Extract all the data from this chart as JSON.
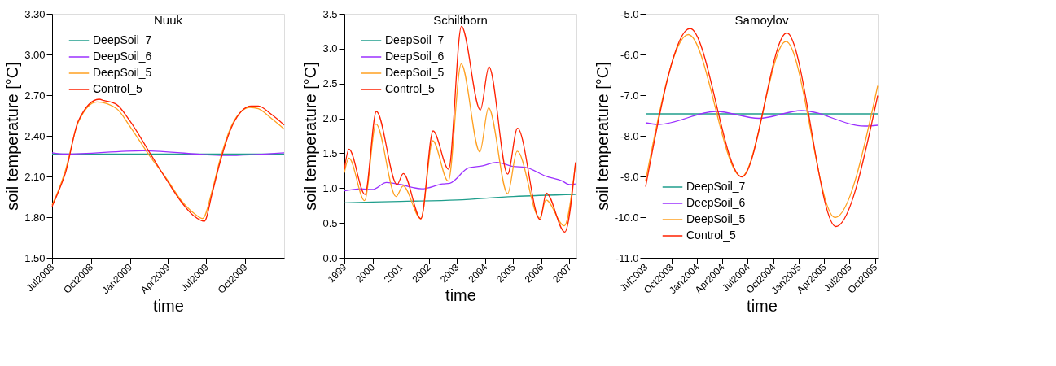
{
  "chart_data": [
    {
      "type": "line",
      "title": "Nuuk",
      "xlabel": "time",
      "ylabel": "soil temperature [°C]",
      "legend": "top left",
      "grid": false,
      "xlim": [
        "2008-07-01",
        "2010-01-01"
      ],
      "xticks": [
        {
          "value": "2008-07-01",
          "label": "Jul2008"
        },
        {
          "value": "2008-10-01",
          "label": "Oct2008"
        },
        {
          "value": "2009-01-01",
          "label": "Jan2009"
        },
        {
          "value": "2009-04-01",
          "label": "Apr2009"
        },
        {
          "value": "2009-07-01",
          "label": "Jul2009"
        },
        {
          "value": "2009-10-01",
          "label": "Oct2009"
        }
      ],
      "ylim": [
        1.5,
        3.3
      ],
      "yticks": [
        {
          "value": 1.5,
          "label": "1.50"
        },
        {
          "value": 1.8,
          "label": "1.80"
        },
        {
          "value": 2.1,
          "label": "2.10"
        },
        {
          "value": 2.4,
          "label": "2.40"
        },
        {
          "value": 2.7,
          "label": "2.70"
        },
        {
          "value": 3.0,
          "label": "3.00"
        },
        {
          "value": 3.3,
          "label": "3.30"
        }
      ],
      "series": [
        {
          "name": "DeepSoil_7",
          "color": "#1f9e8c",
          "x": [
            "2008-07-01",
            "2009-01-01",
            "2009-07-01",
            "2010-01-01"
          ],
          "values": [
            2.265,
            2.265,
            2.265,
            2.265
          ]
        },
        {
          "name": "DeepSoil_6",
          "color": "#9b30ff",
          "x": [
            "2008-07-01",
            "2008-08-01",
            "2009-02-01",
            "2009-08-15",
            "2010-01-01"
          ],
          "values": [
            2.275,
            2.265,
            2.29,
            2.255,
            2.275
          ]
        },
        {
          "name": "DeepSoil_5",
          "color": "#ffa020",
          "x": [
            "2008-07-01",
            "2008-07-15",
            "2008-08-01",
            "2008-09-01",
            "2008-10-15",
            "2008-12-01",
            "2009-01-01",
            "2009-02-15",
            "2009-04-01",
            "2009-05-01",
            "2009-06-01",
            "2009-06-22",
            "2009-07-15",
            "2009-08-01",
            "2009-09-01",
            "2009-10-12",
            "2009-11-01",
            "2009-12-01",
            "2010-01-01"
          ],
          "values": [
            1.89,
            1.99,
            2.14,
            2.5,
            2.65,
            2.6,
            2.47,
            2.26,
            2.07,
            1.93,
            1.83,
            1.79,
            2.0,
            2.21,
            2.49,
            2.61,
            2.6,
            2.53,
            2.45
          ]
        },
        {
          "name": "Control_5",
          "color": "#ff2000",
          "x": [
            "2008-07-01",
            "2008-07-15",
            "2008-08-01",
            "2008-09-01",
            "2008-10-20",
            "2008-11-01",
            "2008-12-01",
            "2009-01-01",
            "2009-02-18",
            "2009-04-01",
            "2009-05-01",
            "2009-06-01",
            "2009-06-26",
            "2009-07-15",
            "2009-08-01",
            "2009-09-01",
            "2009-10-15",
            "2009-11-01",
            "2009-12-01",
            "2010-01-01"
          ],
          "values": [
            1.88,
            1.98,
            2.12,
            2.51,
            2.67,
            2.66,
            2.63,
            2.51,
            2.27,
            2.06,
            1.92,
            1.81,
            1.77,
            1.98,
            2.19,
            2.48,
            2.62,
            2.62,
            2.56,
            2.48
          ]
        }
      ]
    },
    {
      "type": "line",
      "title": "Schilthorn",
      "xlabel": "time",
      "ylabel": "soil temperature [°C]",
      "legend": "top left",
      "grid": false,
      "xlim": [
        "1999-01-01",
        "2007-04-01"
      ],
      "xticks": [
        {
          "value": "1999-01-01",
          "label": "1999"
        },
        {
          "value": "2000-01-01",
          "label": "2000"
        },
        {
          "value": "2001-01-01",
          "label": "2001"
        },
        {
          "value": "2002-01-01",
          "label": "2002"
        },
        {
          "value": "2003-01-01",
          "label": "2003"
        },
        {
          "value": "2004-01-01",
          "label": "2004"
        },
        {
          "value": "2005-01-01",
          "label": "2005"
        },
        {
          "value": "2006-01-01",
          "label": "2006"
        },
        {
          "value": "2007-01-01",
          "label": "2007"
        }
      ],
      "ylim": [
        0,
        3.5
      ],
      "yticks": [
        {
          "value": 0,
          "label": "0.0"
        },
        0.5,
        {
          "value": 1,
          "label": "1.0"
        },
        1.5,
        {
          "value": 2,
          "label": "2.0"
        },
        2.5,
        {
          "value": 3,
          "label": "3.0"
        },
        3.5
      ],
      "series": [
        {
          "name": "DeepSoil_7",
          "color": "#1f9e8c",
          "x": [
            "1999-01-01",
            "2001-01-01",
            "2003-01-01",
            "2005-01-01",
            "2007-03-20"
          ],
          "values": [
            0.79,
            0.81,
            0.83,
            0.88,
            0.91
          ]
        },
        {
          "name": "DeepSoil_6",
          "color": "#9b30ff",
          "x": [
            "1999-01-01",
            "1999-08-01",
            "2000-01-01",
            "2000-07-01",
            "2001-01-01",
            "2001-10-01",
            "2002-07-01",
            "2002-10-01",
            "2003-06-01",
            "2003-12-01",
            "2004-06-01",
            "2005-01-01",
            "2005-06-01",
            "2006-03-01",
            "2006-10-01",
            "2007-01-01",
            "2007-03-20"
          ],
          "values": [
            0.96,
            0.99,
            0.98,
            1.08,
            1.05,
            0.99,
            1.06,
            1.07,
            1.29,
            1.32,
            1.37,
            1.31,
            1.3,
            1.17,
            1.1,
            1.05,
            1.06
          ]
        },
        {
          "name": "DeepSoil_5",
          "color": "#ffa020",
          "x": [
            "1999-01-01",
            "1999-03-01",
            "1999-09-20",
            "2000-02-15",
            "2000-11-01",
            "2001-02-01",
            "2001-09-20",
            "2002-02-20",
            "2002-09-10",
            "2003-02-25",
            "2003-10-25",
            "2004-02-15",
            "2004-10-20",
            "2005-02-20",
            "2005-12-10",
            "2006-03-01",
            "2006-10-25",
            "2007-03-20"
          ],
          "values": [
            1.22,
            1.43,
            0.82,
            1.92,
            0.88,
            1.03,
            0.56,
            1.68,
            1.1,
            2.78,
            1.52,
            2.15,
            0.92,
            1.53,
            0.57,
            0.83,
            0.46,
            1.35
          ]
        },
        {
          "name": "Control_5",
          "color": "#ff2000",
          "x": [
            "1999-01-01",
            "1999-03-01",
            "1999-09-25",
            "2000-02-20",
            "2000-11-15",
            "2001-02-03",
            "2001-09-20",
            "2002-02-25",
            "2002-09-15",
            "2003-02-28",
            "2003-11-01",
            "2004-02-20",
            "2004-10-20",
            "2005-02-25",
            "2005-12-15",
            "2006-03-05",
            "2006-11-01",
            "2007-03-20"
          ],
          "values": [
            1.27,
            1.56,
            0.91,
            2.1,
            1.05,
            1.21,
            0.56,
            1.82,
            1.27,
            3.32,
            2.12,
            2.74,
            1.2,
            1.86,
            0.55,
            0.93,
            0.37,
            1.37
          ]
        }
      ]
    },
    {
      "type": "line",
      "title": "Samoylov",
      "xlabel": "time",
      "ylabel": "soil temperature [°C]",
      "legend": "bottom left",
      "grid": false,
      "xlim": [
        "2003-07-01",
        "2005-10-10"
      ],
      "xticks": [
        {
          "value": "2003-07-01",
          "label": "Jul2003"
        },
        {
          "value": "2003-10-01",
          "label": "Oct2003"
        },
        {
          "value": "2004-01-01",
          "label": "Jan2004"
        },
        {
          "value": "2004-04-01",
          "label": "Apr2004"
        },
        {
          "value": "2004-07-01",
          "label": "Jul2004"
        },
        {
          "value": "2004-10-01",
          "label": "Oct2004"
        },
        {
          "value": "2005-01-01",
          "label": "Jan2005"
        },
        {
          "value": "2005-04-01",
          "label": "Apr2005"
        },
        {
          "value": "2005-07-01",
          "label": "Jul2005"
        },
        {
          "value": "2005-10-01",
          "label": "Oct2005"
        }
      ],
      "ylim": [
        -11,
        -5
      ],
      "yticks": [
        {
          "value": -11,
          "label": "-11.0"
        },
        {
          "value": -10,
          "label": "-10.0"
        },
        {
          "value": -9,
          "label": "-9.0"
        },
        {
          "value": -8,
          "label": "-8.0"
        },
        {
          "value": -7,
          "label": "-7.0"
        },
        {
          "value": -6,
          "label": "-6.0"
        },
        {
          "value": -5,
          "label": "-5.0"
        }
      ],
      "series": [
        {
          "name": "DeepSoil_7",
          "color": "#1f9e8c",
          "x": [
            "2003-07-01",
            "2004-07-01",
            "2005-10-10"
          ],
          "values": [
            -7.46,
            -7.46,
            -7.46
          ]
        },
        {
          "name": "DeepSoil_6",
          "color": "#9b30ff",
          "x": [
            "2003-07-01",
            "2003-08-15",
            "2004-03-10",
            "2004-08-10",
            "2005-01-10",
            "2005-08-25",
            "2005-10-10"
          ],
          "values": [
            -7.68,
            -7.72,
            -7.4,
            -7.57,
            -7.38,
            -7.76,
            -7.74
          ]
        },
        {
          "name": "DeepSoil_5",
          "color": "#ffa020",
          "x": [
            "2003-07-01",
            "2003-12-01",
            "2004-06-08",
            "2004-11-15",
            "2005-05-10",
            "2005-10-10"
          ],
          "values": [
            -9.1,
            -5.51,
            -9.0,
            -5.68,
            -10.01,
            -6.77
          ]
        },
        {
          "name": "Control_5",
          "color": "#ff2000",
          "x": [
            "2003-07-01",
            "2003-12-07",
            "2004-06-10",
            "2004-11-18",
            "2005-05-13",
            "2005-10-10"
          ],
          "values": [
            -9.25,
            -5.36,
            -9.01,
            -5.47,
            -10.23,
            -7.01
          ]
        }
      ]
    }
  ]
}
